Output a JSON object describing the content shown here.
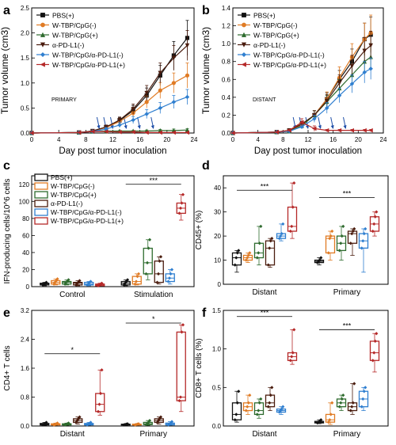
{
  "colors": {
    "PBS(+)": "#111111",
    "W-TBP/CpG(-)": "#e07b24",
    "W-TBP/CpG(+)": "#2e6b2e",
    "α-PD-L1(-)": "#4a1c0e",
    "W-TBP/CpG/α-PD-L1(-)": "#2f7fd0",
    "W-TBP/CpG/α-PD-L1(+)": "#b52828"
  },
  "chart_data": [
    {
      "panel": "a",
      "type": "line",
      "xlabel": "Day post tumor inoculation",
      "ylabel": "Tumor volume (cm3)",
      "xlim": [
        0,
        24
      ],
      "ylim": [
        0,
        2.5
      ],
      "xticks": [
        "0",
        "4",
        "8",
        "12",
        "16",
        "20",
        "24"
      ],
      "yticks": [
        "0.0",
        "0.5",
        "1.0",
        "1.5",
        "2.0",
        "2.5"
      ],
      "annotation": "PRIMARY",
      "treatment_arrow_days": [
        10,
        11,
        12,
        14,
        16,
        18
      ],
      "x": [
        0,
        7,
        9,
        11,
        13,
        15,
        17,
        19,
        21,
        23
      ],
      "series": [
        {
          "name": "PBS(+)",
          "marker": "square",
          "values": [
            0,
            0.01,
            0.04,
            0.12,
            0.25,
            0.45,
            0.75,
            1.15,
            1.55,
            1.9
          ],
          "err": [
            0,
            0,
            0.02,
            0.04,
            0.06,
            0.1,
            0.15,
            0.2,
            0.28,
            0.35
          ]
        },
        {
          "name": "W-TBP/CpG(-)",
          "marker": "circle",
          "values": [
            0,
            0.01,
            0.04,
            0.11,
            0.23,
            0.4,
            0.62,
            0.85,
            1.0,
            1.15
          ],
          "err": [
            0,
            0,
            0.02,
            0.04,
            0.06,
            0.08,
            0.12,
            0.16,
            0.2,
            0.25
          ]
        },
        {
          "name": "W-TBP/CpG(+)",
          "marker": "triangle-up",
          "values": [
            0,
            0.01,
            0.03,
            0.04,
            0.04,
            0.04,
            0.04,
            0.05,
            0.05,
            0.06
          ],
          "err": [
            0,
            0,
            0.01,
            0.01,
            0.01,
            0.01,
            0.02,
            0.02,
            0.03,
            0.03
          ]
        },
        {
          "name": "α-PD-L1(-)",
          "marker": "triangle-down",
          "values": [
            0,
            0.01,
            0.04,
            0.12,
            0.26,
            0.48,
            0.8,
            1.2,
            1.5,
            1.75
          ],
          "err": [
            0,
            0,
            0.02,
            0.04,
            0.06,
            0.1,
            0.15,
            0.2,
            0.25,
            0.3
          ]
        },
        {
          "name": "W-TBP/CpG/α-PD-L1(-)",
          "marker": "diamond",
          "values": [
            0,
            0.01,
            0.03,
            0.08,
            0.16,
            0.26,
            0.38,
            0.5,
            0.62,
            0.72
          ],
          "err": [
            0,
            0,
            0.01,
            0.03,
            0.05,
            0.07,
            0.09,
            0.11,
            0.13,
            0.15
          ]
        },
        {
          "name": "W-TBP/CpG/α-PD-L1(+)",
          "marker": "triangle-left",
          "values": [
            0,
            0.01,
            0.03,
            0.03,
            0.02,
            0.02,
            0.01,
            0.01,
            0.01,
            0.01
          ],
          "err": [
            0,
            0,
            0.01,
            0.01,
            0.01,
            0.01,
            0.01,
            0.01,
            0.01,
            0.01
          ]
        }
      ]
    },
    {
      "panel": "b",
      "type": "line",
      "xlabel": "Day post tumor inoculation",
      "ylabel": "Tumor volume (cm3)",
      "xlim": [
        0,
        24
      ],
      "ylim": [
        0,
        1.4
      ],
      "xticks": [
        "0",
        "4",
        "8",
        "12",
        "16",
        "20",
        "24"
      ],
      "yticks": [
        "0.0",
        "0.2",
        "0.4",
        "0.6",
        "0.8",
        "1.0",
        "1.2",
        "1.4"
      ],
      "annotation": "DISTANT",
      "treatment_arrow_days": [
        10,
        11,
        12,
        14,
        16,
        18
      ],
      "x": [
        0,
        7,
        9,
        11,
        13,
        15,
        17,
        19,
        21,
        22
      ],
      "series": [
        {
          "name": "PBS(+)",
          "marker": "square",
          "values": [
            0,
            0.01,
            0.03,
            0.1,
            0.2,
            0.38,
            0.6,
            0.8,
            1.05,
            1.1
          ],
          "err": [
            0,
            0,
            0.01,
            0.03,
            0.05,
            0.07,
            0.1,
            0.14,
            0.18,
            0.2
          ]
        },
        {
          "name": "W-TBP/CpG(-)",
          "marker": "circle",
          "values": [
            0,
            0.01,
            0.03,
            0.09,
            0.2,
            0.38,
            0.62,
            0.85,
            1.05,
            1.12
          ],
          "err": [
            0,
            0,
            0.01,
            0.03,
            0.05,
            0.08,
            0.12,
            0.15,
            0.18,
            0.2
          ]
        },
        {
          "name": "W-TBP/CpG(+)",
          "marker": "triangle-up",
          "values": [
            0,
            0.01,
            0.02,
            0.08,
            0.2,
            0.35,
            0.5,
            0.65,
            0.8,
            0.85
          ],
          "err": [
            0,
            0,
            0.01,
            0.03,
            0.05,
            0.07,
            0.1,
            0.12,
            0.14,
            0.15
          ]
        },
        {
          "name": "α-PD-L1(-)",
          "marker": "triangle-down",
          "values": [
            0,
            0.01,
            0.03,
            0.1,
            0.2,
            0.36,
            0.56,
            0.75,
            0.92,
            0.98
          ],
          "err": [
            0,
            0,
            0.01,
            0.03,
            0.05,
            0.07,
            0.09,
            0.12,
            0.15,
            0.16
          ]
        },
        {
          "name": "W-TBP/CpG/α-PD-L1(-)",
          "marker": "diamond",
          "values": [
            0,
            0.01,
            0.02,
            0.07,
            0.16,
            0.28,
            0.42,
            0.55,
            0.68,
            0.72
          ],
          "err": [
            0,
            0,
            0.01,
            0.02,
            0.04,
            0.06,
            0.08,
            0.1,
            0.12,
            0.12
          ]
        },
        {
          "name": "W-TBP/CpG/α-PD-L1(+)",
          "marker": "triangle-left",
          "values": [
            0,
            0.01,
            0.03,
            0.12,
            0.05,
            0.03,
            0.03,
            0.03,
            0.03,
            0.03
          ],
          "err": [
            0,
            0,
            0.01,
            0.04,
            0.03,
            0.01,
            0.01,
            0.01,
            0.01,
            0.01
          ]
        }
      ]
    },
    {
      "panel": "c",
      "type": "box",
      "ylabel": "IFN-producing cells/10^6 cells",
      "ylim": [
        0,
        130
      ],
      "yticks": [
        "0",
        "20",
        "40",
        "60",
        "80",
        "100",
        "120"
      ],
      "categories": [
        "Control",
        "Stimulation"
      ],
      "significance": [
        {
          "label": "***",
          "from_group": 1,
          "from_series": 0,
          "to_group": 1,
          "to_series": 5,
          "at": 120
        }
      ],
      "series": [
        {
          "name": "PBS(+)",
          "boxes": [
            [
              1,
              2,
              3,
              4,
              5
            ],
            [
              1,
              2,
              4,
              6,
              8
            ]
          ]
        },
        {
          "name": "W-TBP/CpG(-)",
          "boxes": [
            [
              2,
              3,
              5,
              7,
              9
            ],
            [
              2,
              3,
              6,
              12,
              15
            ]
          ]
        },
        {
          "name": "W-TBP/CpG(+)",
          "boxes": [
            [
              2,
              3,
              5,
              6,
              8
            ],
            [
              8,
              15,
              28,
              45,
              55
            ]
          ]
        },
        {
          "name": "α-PD-L1(-)",
          "boxes": [
            [
              1,
              2,
              4,
              5,
              7
            ],
            [
              3,
              5,
              15,
              30,
              35
            ]
          ]
        },
        {
          "name": "W-TBP/CpG/α-PD-L1(-)",
          "boxes": [
            [
              1,
              2,
              3,
              5,
              6
            ],
            [
              3,
              6,
              10,
              15,
              20
            ]
          ]
        },
        {
          "name": "W-TBP/CpG/α-PD-L1(+)",
          "boxes": [
            [
              1,
              1,
              2,
              3,
              4
            ],
            [
              78,
              86,
              92,
              98,
              108
            ]
          ]
        }
      ]
    },
    {
      "panel": "d",
      "type": "box",
      "ylabel": "CD45+ (%)",
      "ylim": [
        0,
        45
      ],
      "yticks": [
        "0",
        "10",
        "20",
        "30",
        "40"
      ],
      "categories": [
        "Distant",
        "Primary"
      ],
      "significance": [
        {
          "label": "***",
          "from_group": 0,
          "from_series": 0,
          "to_group": 0,
          "to_series": 5,
          "at": 39
        },
        {
          "label": "***",
          "from_group": 1,
          "from_series": 0,
          "to_group": 1,
          "to_series": 5,
          "at": 36
        }
      ],
      "series": [
        {
          "name": "PBS(+)",
          "boxes": [
            [
              5,
              8,
              11,
              13,
              14
            ],
            [
              8,
              9,
              9.5,
              10,
              11
            ]
          ]
        },
        {
          "name": "W-TBP/CpG(-)",
          "boxes": [
            [
              9,
              10,
              11,
              12,
              13
            ],
            [
              10,
              13,
              19,
              20,
              22
            ]
          ]
        },
        {
          "name": "W-TBP/CpG(+)",
          "boxes": [
            [
              8,
              11,
              13,
              17,
              24
            ],
            [
              10,
              14,
              17,
              20,
              24
            ]
          ]
        },
        {
          "name": "α-PD-L1(-)",
          "boxes": [
            [
              7,
              8,
              15,
              18,
              19
            ],
            [
              12,
              17,
              21,
              22,
              23
            ]
          ]
        },
        {
          "name": "W-TBP/CpG/α-PD-L1(-)",
          "boxes": [
            [
              18,
              19,
              20,
              21,
              25
            ],
            [
              5,
              15,
              18,
              21,
              23
            ]
          ]
        },
        {
          "name": "W-TBP/CpG/α-PD-L1(+)",
          "boxes": [
            [
              19,
              22,
              24,
              32,
              42
            ],
            [
              20,
              22,
              25,
              28,
              30
            ]
          ]
        }
      ]
    },
    {
      "panel": "e",
      "type": "box",
      "ylabel": "CD4+ T cells",
      "ylim": [
        0,
        3.2
      ],
      "yticks": [
        "0.0",
        "0.8",
        "1.6",
        "2.4",
        "3.2"
      ],
      "categories": [
        "Distant",
        "Primary"
      ],
      "significance": [
        {
          "label": "*",
          "from_group": 0,
          "from_series": 0,
          "to_group": 0,
          "to_series": 5,
          "at": 2.0
        },
        {
          "label": "*",
          "from_group": 1,
          "from_series": 0,
          "to_group": 1,
          "to_series": 5,
          "at": 2.85
        }
      ],
      "series": [
        {
          "name": "PBS(+)",
          "boxes": [
            [
              0.02,
              0.03,
              0.05,
              0.07,
              0.1
            ],
            [
              0.02,
              0.03,
              0.04,
              0.05,
              0.06
            ]
          ]
        },
        {
          "name": "W-TBP/CpG(-)",
          "boxes": [
            [
              0.02,
              0.03,
              0.04,
              0.06,
              0.08
            ],
            [
              0.02,
              0.03,
              0.04,
              0.05,
              0.06
            ]
          ]
        },
        {
          "name": "W-TBP/CpG(+)",
          "boxes": [
            [
              0.02,
              0.03,
              0.04,
              0.06,
              0.08
            ],
            [
              0.02,
              0.04,
              0.06,
              0.1,
              0.15
            ]
          ]
        },
        {
          "name": "α-PD-L1(-)",
          "boxes": [
            [
              0.05,
              0.1,
              0.15,
              0.2,
              0.25
            ],
            [
              0.05,
              0.1,
              0.15,
              0.2,
              0.25
            ]
          ]
        },
        {
          "name": "W-TBP/CpG/α-PD-L1(-)",
          "boxes": [
            [
              0.02,
              0.03,
              0.05,
              0.07,
              0.1
            ],
            [
              0.02,
              0.03,
              0.05,
              0.08,
              0.12
            ]
          ]
        },
        {
          "name": "W-TBP/CpG/α-PD-L1(+)",
          "boxes": [
            [
              0.3,
              0.4,
              0.6,
              0.9,
              1.55
            ],
            [
              0.4,
              0.7,
              0.8,
              2.6,
              2.8
            ]
          ]
        }
      ]
    },
    {
      "panel": "f",
      "type": "box",
      "ylabel": "CD8+ T cells (%)",
      "ylim": [
        0,
        1.5
      ],
      "yticks": [
        "0.0",
        "0.5",
        "1.0",
        "1.5"
      ],
      "categories": [
        "Distant",
        "Primary"
      ],
      "significance": [
        {
          "label": "***",
          "from_group": 0,
          "from_series": 0,
          "to_group": 0,
          "to_series": 5,
          "at": 1.42
        },
        {
          "label": "***",
          "from_group": 1,
          "from_series": 0,
          "to_group": 1,
          "to_series": 5,
          "at": 1.25
        }
      ],
      "series": [
        {
          "name": "PBS(+)",
          "boxes": [
            [
              0.05,
              0.08,
              0.15,
              0.3,
              0.45
            ],
            [
              0.03,
              0.04,
              0.05,
              0.06,
              0.08
            ]
          ]
        },
        {
          "name": "W-TBP/CpG(-)",
          "boxes": [
            [
              0.15,
              0.2,
              0.25,
              0.3,
              0.4
            ],
            [
              0.02,
              0.05,
              0.08,
              0.15,
              0.3
            ]
          ]
        },
        {
          "name": "W-TBP/CpG(+)",
          "boxes": [
            [
              0.1,
              0.15,
              0.2,
              0.3,
              0.35
            ],
            [
              0.2,
              0.25,
              0.3,
              0.35,
              0.4
            ]
          ]
        },
        {
          "name": "α-PD-L1(-)",
          "boxes": [
            [
              0.2,
              0.25,
              0.3,
              0.4,
              0.5
            ],
            [
              0.15,
              0.2,
              0.25,
              0.3,
              0.55
            ]
          ]
        },
        {
          "name": "W-TBP/CpG/α-PD-L1(-)",
          "boxes": [
            [
              0.15,
              0.18,
              0.2,
              0.22,
              0.25
            ],
            [
              0.2,
              0.25,
              0.35,
              0.45,
              0.5
            ]
          ]
        },
        {
          "name": "W-TBP/CpG/α-PD-L1(+)",
          "boxes": [
            [
              0.8,
              0.85,
              0.9,
              0.95,
              1.25
            ],
            [
              0.7,
              0.85,
              0.95,
              1.1,
              1.2
            ]
          ]
        }
      ]
    }
  ]
}
